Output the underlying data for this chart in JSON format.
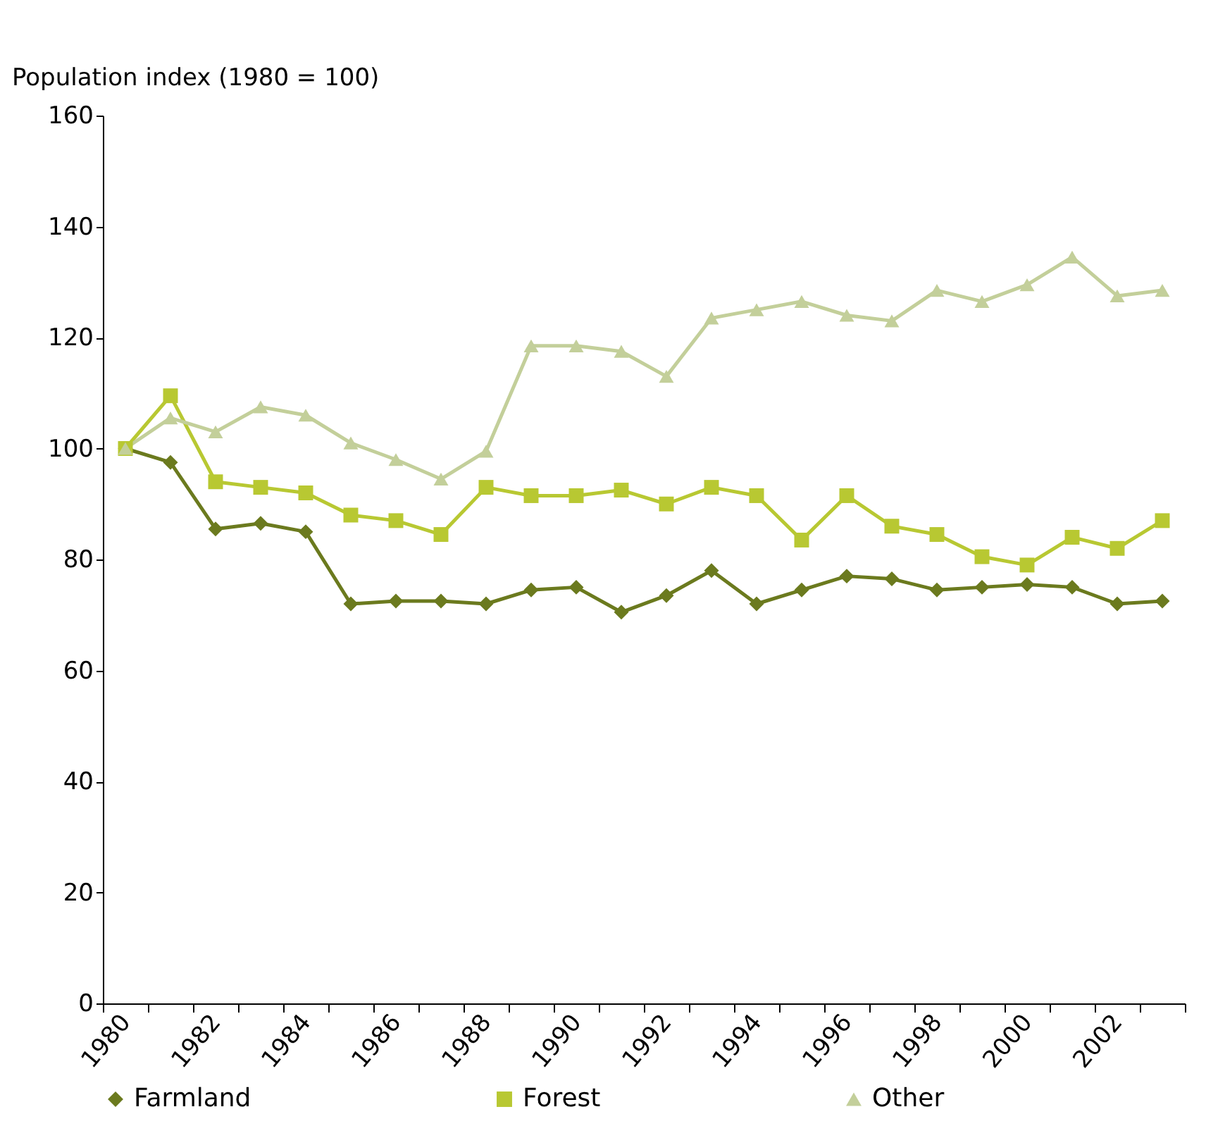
{
  "chart_data": {
    "type": "line",
    "ylabel": "Population index (1980 = 100)",
    "categories": [
      "1980",
      null,
      "1982",
      null,
      "1984",
      null,
      "1986",
      null,
      "1988",
      null,
      "1990",
      null,
      "1992",
      null,
      "1994",
      null,
      "1996",
      null,
      "1998",
      null,
      "2000",
      null,
      "2002",
      null
    ],
    "series": [
      {
        "name": "Farmland",
        "color": "#6b7a1e",
        "marker": "diamond",
        "values": [
          100,
          97.5,
          85.5,
          86.5,
          85,
          72,
          72.5,
          72.5,
          72,
          74.5,
          75,
          70.5,
          73.5,
          78,
          72,
          74.5,
          77,
          76.5,
          74.5,
          75,
          75.5,
          75,
          72,
          72.5
        ]
      },
      {
        "name": "Forest",
        "color": "#b8c832",
        "marker": "square",
        "values": [
          100,
          109.5,
          94,
          93,
          92,
          88,
          87,
          84.5,
          93,
          91.5,
          91.5,
          92.5,
          90,
          93,
          91.5,
          83.5,
          91.5,
          86,
          84.5,
          80.5,
          79,
          84,
          82,
          87
        ]
      },
      {
        "name": "Other",
        "color": "#c3cf9a",
        "marker": "triangle",
        "values": [
          100,
          105.5,
          103,
          107.5,
          106,
          101,
          98,
          94.5,
          99.5,
          118.5,
          118.5,
          117.5,
          113,
          123.5,
          125,
          126.5,
          124,
          123,
          128.5,
          126.5,
          129.5,
          134.5,
          127.5,
          128.5
        ]
      }
    ],
    "ylim": [
      0,
      160
    ],
    "yticks": [
      0,
      20,
      40,
      60,
      80,
      100,
      120,
      140,
      160
    ],
    "legend": "bottom"
  }
}
